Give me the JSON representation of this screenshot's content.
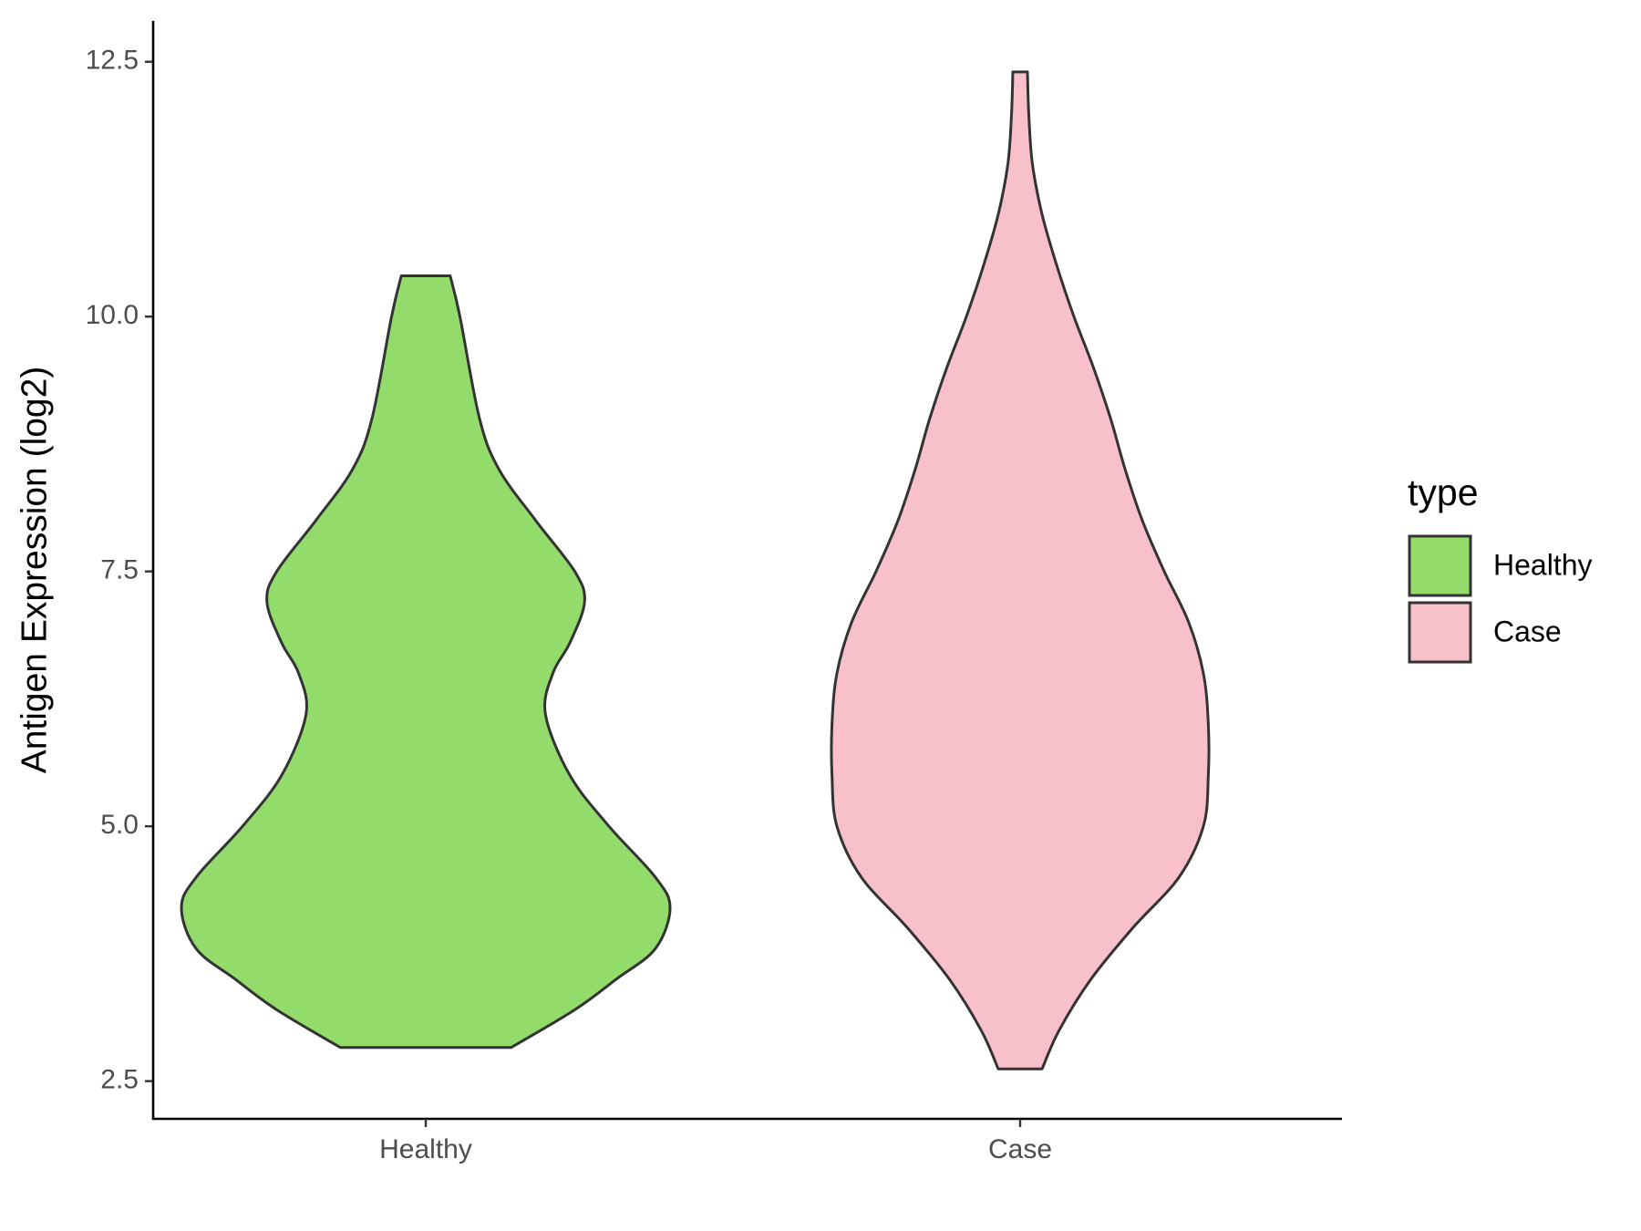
{
  "chart_data": {
    "type": "violin",
    "y_label": "Antigen Expression (log2)",
    "legend_title": "type",
    "legend": "right",
    "categories": [
      "Healthy",
      "Case"
    ],
    "ylim": [
      2.13,
      12.9
    ],
    "yticks": [
      2.5,
      {
        "value": 5,
        "label": "5.0"
      },
      7.5,
      {
        "value": 10,
        "label": "10.0"
      },
      12.5
    ],
    "series": [
      {
        "name": "Healthy",
        "color": "#93db6b",
        "y": [
          10.4,
          10.0,
          9.0,
          8.5,
          8.0,
          7.5,
          7.2,
          6.8,
          6.5,
          6.1,
          5.5,
          5.0,
          4.5,
          4.2,
          3.8,
          3.5,
          3.2,
          2.83
        ],
        "density": [
          0.1,
          0.14,
          0.22,
          0.3,
          0.45,
          0.61,
          0.65,
          0.59,
          0.52,
          0.49,
          0.59,
          0.75,
          0.94,
          1.0,
          0.94,
          0.78,
          0.61,
          0.35
        ]
      },
      {
        "name": "Case",
        "color": "#f7c0cb",
        "y": [
          12.4,
          12.0,
          11.5,
          11.0,
          10.5,
          10.0,
          9.5,
          9.0,
          8.5,
          8.0,
          7.5,
          7.0,
          6.5,
          6.0,
          5.5,
          5.0,
          4.5,
          4.0,
          3.5,
          3.0,
          2.62
        ],
        "density": [
          0.03,
          0.035,
          0.05,
          0.09,
          0.15,
          0.22,
          0.3,
          0.37,
          0.43,
          0.5,
          0.59,
          0.69,
          0.75,
          0.77,
          0.77,
          0.75,
          0.65,
          0.46,
          0.29,
          0.16,
          0.09
        ]
      }
    ]
  }
}
